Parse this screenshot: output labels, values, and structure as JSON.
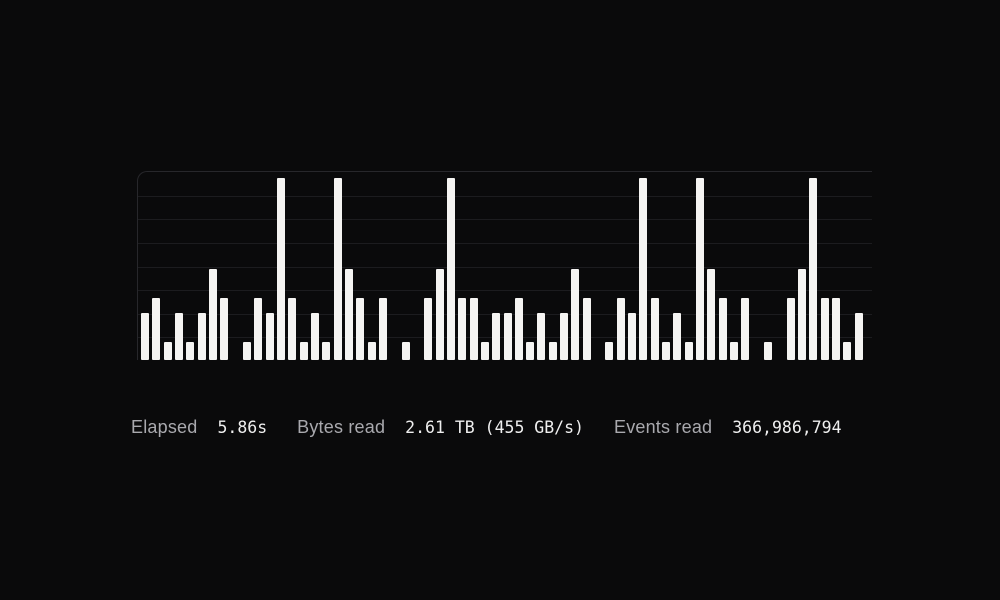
{
  "page": {
    "background": "#0a0a0b"
  },
  "stats": [
    {
      "label": "Elapsed",
      "value": "5.86s"
    },
    {
      "label": "Bytes read",
      "value": "2.61 TB (455 GB/s)"
    },
    {
      "label": "Events read",
      "value": "366,986,794"
    }
  ],
  "chart_data": {
    "type": "bar",
    "title": "",
    "xlabel": "",
    "ylabel": "",
    "ylim": [
      0,
      100
    ],
    "grid": true,
    "gridline_intervals": 8,
    "legend": false,
    "bar_color": "#f5f4f2",
    "gridline_color": "#1c1c1f",
    "border_color": "#27272b",
    "values": [
      26,
      34,
      10,
      26,
      10,
      26,
      50,
      34,
      0,
      10,
      34,
      26,
      100,
      34,
      10,
      26,
      10,
      100,
      50,
      34,
      10,
      34,
      0,
      10,
      0,
      34,
      50,
      100,
      34,
      34,
      10,
      26,
      26,
      34,
      10,
      26,
      10,
      26,
      50,
      34,
      0,
      10,
      34,
      26,
      100,
      34,
      10,
      26,
      10,
      100,
      50,
      34,
      10,
      34,
      0,
      10,
      0,
      34,
      50,
      100,
      34,
      34,
      10,
      26
    ]
  }
}
